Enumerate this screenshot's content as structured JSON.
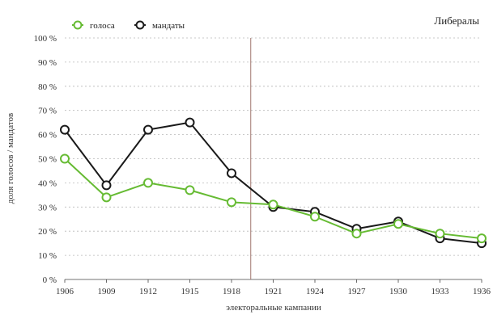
{
  "chart_data": {
    "type": "line",
    "title": "Либералы",
    "xlabel": "электоральные кампании",
    "ylabel": "доля голосов / мандатов",
    "categories": [
      "1906",
      "1909",
      "1912",
      "1915",
      "1918",
      "1921",
      "1924",
      "1927",
      "1930",
      "1933",
      "1936"
    ],
    "y_ticks": [
      "0 %",
      "10 %",
      "20 %",
      "30 %",
      "40 %",
      "50 %",
      "60 %",
      "70 %",
      "80 %",
      "90 %",
      "100 %"
    ],
    "ylim": [
      0,
      100
    ],
    "grid": "horizontal-dotted",
    "legend_position": "top-left",
    "reference_line_after": "1918",
    "series": [
      {
        "name": "голоса",
        "color": "#66bb33",
        "values": [
          50,
          34,
          40,
          37,
          32,
          31,
          26,
          19,
          23,
          19,
          17
        ]
      },
      {
        "name": "мандаты",
        "color": "#1a1a1a",
        "values": [
          62,
          39,
          62,
          65,
          44,
          30,
          28,
          21,
          24,
          17,
          15
        ]
      }
    ],
    "reference_line_color": "#a0766e"
  }
}
